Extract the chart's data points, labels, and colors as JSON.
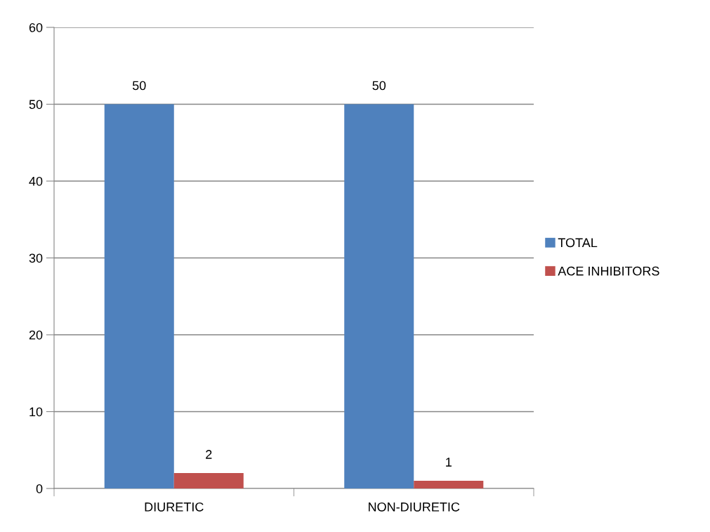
{
  "chart_data": {
    "type": "bar",
    "categories": [
      "DIURETIC",
      "NON-DIURETIC"
    ],
    "series": [
      {
        "name": "TOTAL",
        "color": "#4f81bd",
        "values": [
          50,
          50
        ]
      },
      {
        "name": "ACE INHIBITORS",
        "color": "#c0504d",
        "values": [
          2,
          1
        ]
      }
    ],
    "ylim": [
      0,
      60
    ],
    "yticks": [
      0,
      10,
      20,
      30,
      40,
      50,
      60
    ],
    "grid": "y",
    "legend": "right",
    "data_labels": true
  }
}
